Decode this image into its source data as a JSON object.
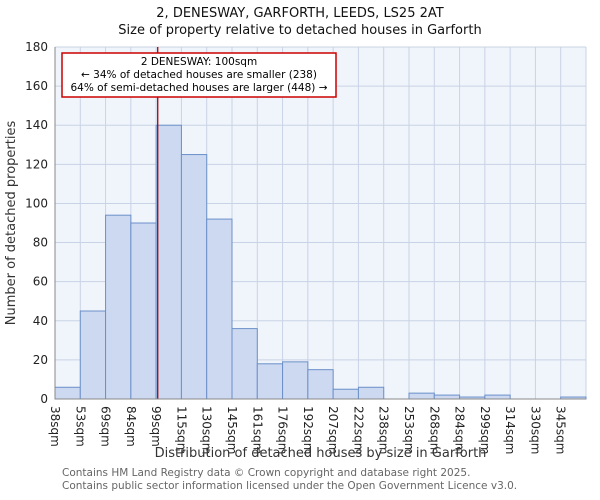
{
  "page": {
    "title": "2, DENESWAY, GARFORTH, LEEDS, LS25 2AT",
    "subtitle": "Size of property relative to detached houses in Garforth",
    "footer_line1": "Contains HM Land Registry data © Crown copyright and database right 2025.",
    "footer_line2": "Contains public sector information licensed under the Open Government Licence v3.0."
  },
  "chart_data": {
    "type": "bar",
    "title": "2, DENESWAY, GARFORTH, LEEDS, LS25 2AT",
    "subtitle": "Size of property relative to detached houses in Garforth",
    "xlabel": "Distribution of detached houses by size in Garforth",
    "ylabel": "Number of detached properties",
    "categories": [
      "38sqm",
      "53sqm",
      "69sqm",
      "84sqm",
      "99sqm",
      "115sqm",
      "130sqm",
      "145sqm",
      "161sqm",
      "176sqm",
      "192sqm",
      "207sqm",
      "222sqm",
      "238sqm",
      "253sqm",
      "268sqm",
      "284sqm",
      "299sqm",
      "314sqm",
      "330sqm",
      "345sqm"
    ],
    "values": [
      6,
      45,
      94,
      90,
      140,
      125,
      92,
      36,
      18,
      19,
      15,
      5,
      6,
      0,
      3,
      2,
      1,
      2,
      0,
      0,
      1
    ],
    "ylim": [
      0,
      180
    ],
    "ytick_step": 20,
    "grid": true,
    "legend": "none",
    "colors": {
      "bar_fill": "#ccd9f1",
      "bar_stroke": "#6b90c9",
      "grid": "#c9d3e6",
      "plot_bg": "#f0f4fb",
      "axis": "#888888",
      "marker_line": "#aa0000",
      "annotation_border": "#cc0000"
    },
    "marker": {
      "value_sqm": 100
    },
    "annotation": {
      "line1": "2 DENESWAY: 100sqm",
      "line2": "← 34% of detached houses are smaller (238)",
      "line3": "64% of semi-detached houses are larger (448) →"
    }
  }
}
